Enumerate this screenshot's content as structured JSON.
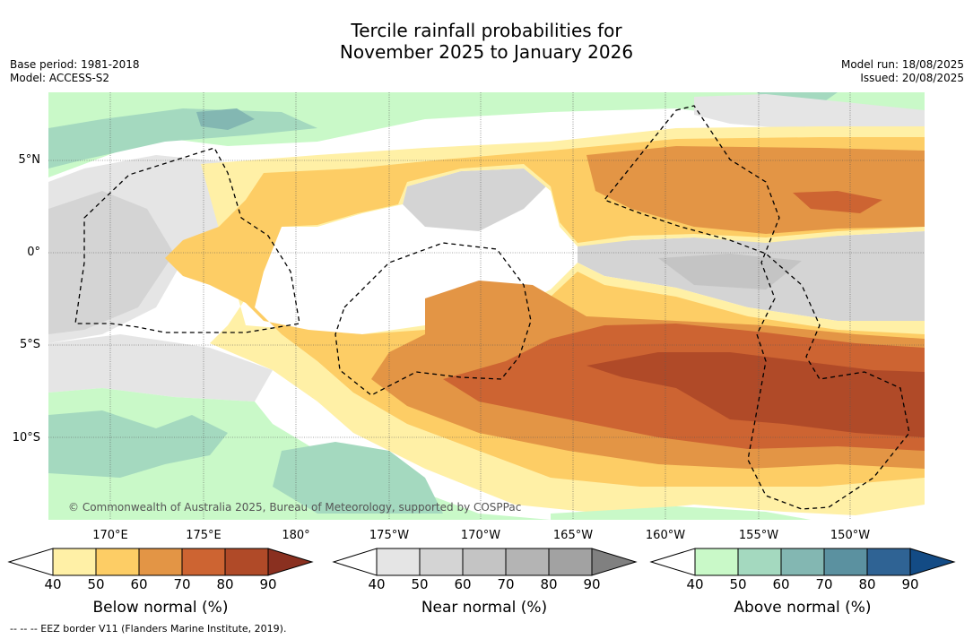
{
  "title_line1": "Tercile rainfall probabilities for",
  "title_line2": "November 2025 to January 2026",
  "base_period": "Base period: 1981-2018",
  "model": "Model: ACCESS-S2",
  "model_run": "Model run: 18/08/2025",
  "issued": "Issued: 20/08/2025",
  "copyright": "© Commonwealth of Australia 2025, Bureau of Meteorology, supported by COSPPac",
  "footnote": "--  --  -- EEZ border V11 (Flanders Marine Institute, 2019).",
  "latitude_labels": [
    "5°N",
    "0°",
    "5°S",
    "10°S"
  ],
  "longitude_labels": [
    "170°E",
    "175°E",
    "180°",
    "175°W",
    "170°W",
    "165°W",
    "160°W",
    "155°W",
    "150°W"
  ],
  "colorbars": [
    {
      "name": "Below normal (%)",
      "ticks": [
        "40",
        "50",
        "60",
        "70",
        "80",
        "90"
      ],
      "colors": [
        "#ffffff",
        "#fff0a6",
        "#fdcd65",
        "#e39545",
        "#cd6432",
        "#b04a28",
        "#8a3020"
      ]
    },
    {
      "name": "Near normal (%)",
      "ticks": [
        "40",
        "50",
        "60",
        "70",
        "80",
        "90"
      ],
      "colors": [
        "#ffffff",
        "#e5e5e5",
        "#d4d4d4",
        "#c4c4c4",
        "#b4b4b4",
        "#a2a2a2",
        "#808080"
      ]
    },
    {
      "name": "Above normal (%)",
      "ticks": [
        "40",
        "50",
        "60",
        "70",
        "80",
        "90"
      ],
      "colors": [
        "#ffffff",
        "#c9f9c8",
        "#a4d9bf",
        "#83b7b2",
        "#5b91a0",
        "#2f6394",
        "#134b85"
      ]
    }
  ]
}
